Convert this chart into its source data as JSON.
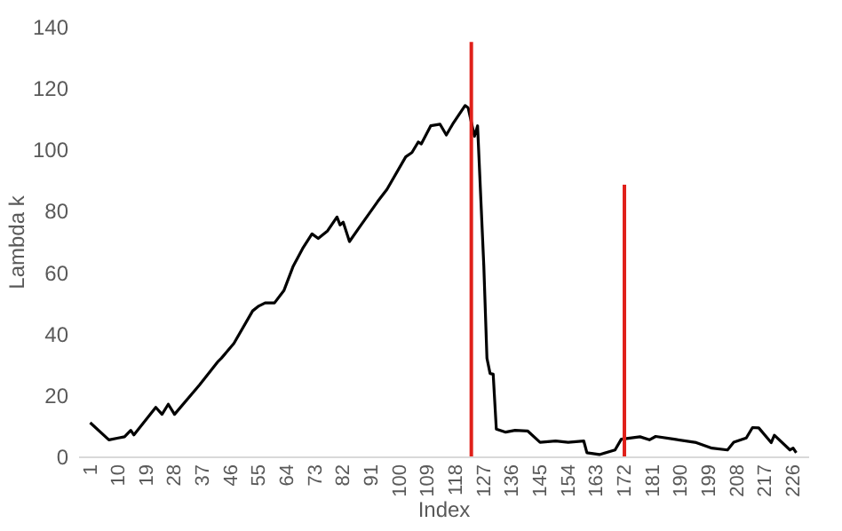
{
  "chart_data": {
    "type": "line",
    "xlabel": "Index",
    "ylabel": "Lambda k",
    "xlim": [
      0,
      228
    ],
    "xticks": [
      1,
      10,
      19,
      28,
      37,
      46,
      55,
      64,
      73,
      82,
      91,
      100,
      109,
      118,
      127,
      136,
      145,
      154,
      163,
      172,
      181,
      190,
      199,
      208,
      217,
      226
    ],
    "ylim": [
      0,
      140
    ],
    "yticks": [
      0,
      20,
      40,
      60,
      80,
      100,
      120,
      140
    ],
    "grid": false,
    "series": [
      {
        "color": "#000000",
        "x": [
          1,
          7,
          10,
          12,
          14,
          15,
          22,
          24,
          26,
          28,
          36,
          42,
          43,
          47,
          53,
          55,
          57,
          60,
          63,
          66,
          69,
          72,
          74,
          77,
          80,
          81,
          82,
          84,
          87,
          93,
          96,
          102,
          104,
          106,
          107,
          110,
          113,
          115,
          117,
          121,
          122,
          124,
          125,
          127,
          128,
          129,
          130,
          131,
          134,
          137,
          141,
          145,
          150,
          154,
          159,
          160,
          164,
          169,
          171,
          177,
          180,
          182,
          188,
          195,
          200,
          205,
          207,
          211,
          213,
          215,
          219,
          220,
          225,
          226,
          227
        ],
        "values": [
          11,
          5.4,
          6,
          6.4,
          8.5,
          7,
          16,
          13.7,
          17,
          13.7,
          23.3,
          31,
          32,
          36.8,
          47.4,
          49,
          50,
          50,
          54,
          62,
          67.7,
          72.5,
          71,
          73.5,
          78,
          75.4,
          76.3,
          70,
          74.4,
          83,
          87,
          97.6,
          99,
          102.4,
          101.8,
          107.7,
          108.2,
          104.7,
          108.2,
          114.3,
          113.5,
          104.3,
          107.7,
          62,
          32,
          27,
          26.8,
          8.9,
          7.9,
          8.5,
          8.3,
          4.6,
          5,
          4.6,
          5,
          1.2,
          0.6,
          2.1,
          5.6,
          6.4,
          5.4,
          6.5,
          5.6,
          4.5,
          2.7,
          2.1,
          4.6,
          6,
          9.4,
          9.3,
          4.5,
          6.9,
          2.1,
          2.7,
          1.2
        ]
      },
      {
        "type": "bar",
        "color": "#e0201a",
        "x": [
          123,
          172
        ],
        "values": [
          135,
          88.5
        ]
      }
    ]
  }
}
